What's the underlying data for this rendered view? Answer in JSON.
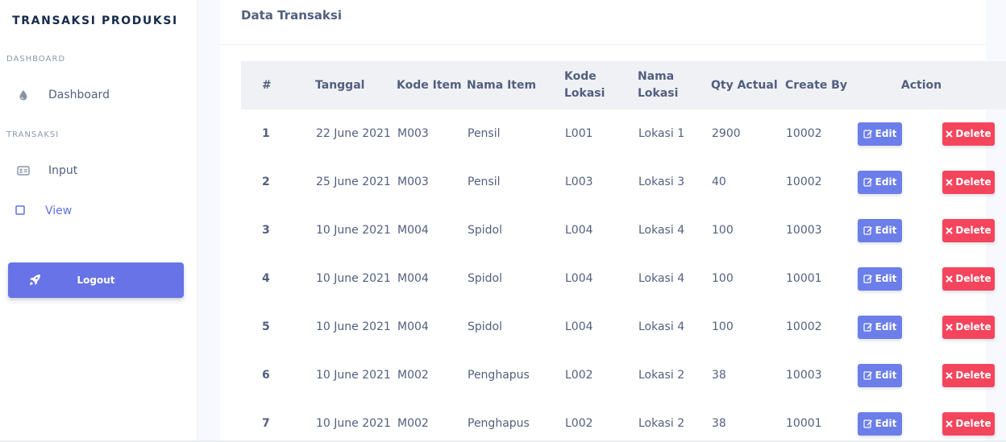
{
  "sidebar": {
    "brand": "TRANSAKSI PRODUKSI",
    "sections": [
      {
        "heading": "DASHBOARD"
      },
      {
        "heading": "TRANSAKSI"
      }
    ],
    "items": [
      {
        "label": "Dashboard",
        "icon": "droplet-icon"
      },
      {
        "label": "Input",
        "icon": "id-card-icon"
      },
      {
        "label": "View",
        "icon": "square-icon",
        "active": true
      }
    ],
    "logout_label": "Logout"
  },
  "main": {
    "card_title": "Data Transaksi",
    "table": {
      "headers": {
        "no": "#",
        "tanggal": "Tanggal",
        "kode_item": "Kode Item",
        "nama_item": "Nama Item",
        "kode_lokasi": "Kode Lokasi",
        "nama_lokasi": "Nama Lokasi",
        "qty_actual": "Qty Actual",
        "create_by": "Create By",
        "action": "Action"
      },
      "rows": [
        {
          "no": "1",
          "tanggal": "22 June 2021",
          "kode_item": "M003",
          "nama_item": "Pensil",
          "kode_lokasi": "L001",
          "nama_lokasi": "Lokasi 1",
          "qty_actual": "2900",
          "create_by": "10002"
        },
        {
          "no": "2",
          "tanggal": "25 June 2021",
          "kode_item": "M003",
          "nama_item": "Pensil",
          "kode_lokasi": "L003",
          "nama_lokasi": "Lokasi 3",
          "qty_actual": "40",
          "create_by": "10002"
        },
        {
          "no": "3",
          "tanggal": "10 June 2021",
          "kode_item": "M004",
          "nama_item": "Spidol",
          "kode_lokasi": "L004",
          "nama_lokasi": "Lokasi 4",
          "qty_actual": "100",
          "create_by": "10003"
        },
        {
          "no": "4",
          "tanggal": "10 June 2021",
          "kode_item": "M004",
          "nama_item": "Spidol",
          "kode_lokasi": "L004",
          "nama_lokasi": "Lokasi 4",
          "qty_actual": "100",
          "create_by": "10001"
        },
        {
          "no": "5",
          "tanggal": "10 June 2021",
          "kode_item": "M004",
          "nama_item": "Spidol",
          "kode_lokasi": "L004",
          "nama_lokasi": "Lokasi 4",
          "qty_actual": "100",
          "create_by": "10002"
        },
        {
          "no": "6",
          "tanggal": "10 June 2021",
          "kode_item": "M002",
          "nama_item": "Penghapus",
          "kode_lokasi": "L002",
          "nama_lokasi": "Lokasi 2",
          "qty_actual": "38",
          "create_by": "10003"
        },
        {
          "no": "7",
          "tanggal": "10 June 2021",
          "kode_item": "M002",
          "nama_item": "Penghapus",
          "kode_lokasi": "L002",
          "nama_lokasi": "Lokasi 2",
          "qty_actual": "38",
          "create_by": "10001"
        }
      ],
      "edit_label": "Edit",
      "delete_label": "Delete"
    }
  },
  "colors": {
    "primary": "#6773e6",
    "danger": "#f5455c",
    "active_nav": "#5e72e4"
  }
}
